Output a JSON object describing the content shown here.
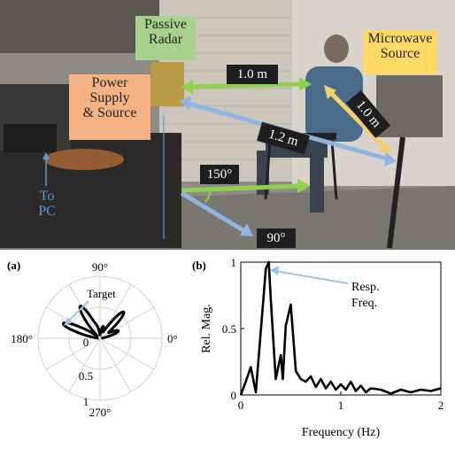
{
  "photo": {
    "labels": {
      "passive_radar": "Passive\nRadar",
      "microwave_source": "Microwave\nSource",
      "power_supply": "Power\nSupply\n& Source",
      "to_pc": "To\nPC",
      "dist_radar_person": "1.0 m",
      "dist_source_person": "1.0 m",
      "dist_radar_source": "1.2 m",
      "angle_150": "150°",
      "angle_90": "90°"
    },
    "colors": {
      "green": "#8fd14f",
      "yellow": "#f2d06b",
      "blue": "#8fb4e3",
      "peach": "#f4b183",
      "green_box": "#a9d18e",
      "yellow_box": "#ffd966",
      "blue_box": "#9dc3e6"
    }
  },
  "chart_data": [
    {
      "type": "polar",
      "panel_label": "(a)",
      "angle_ticks": [
        "90°",
        "180°",
        "0°",
        "270°"
      ],
      "radial_ticks": [
        "0",
        "0.5",
        "1"
      ],
      "annotation": "Target",
      "lobes": [
        {
          "angle_deg": 158,
          "r": 0.62
        },
        {
          "angle_deg": 122,
          "r": 0.58
        },
        {
          "angle_deg": 105,
          "r": 0.18
        },
        {
          "angle_deg": 75,
          "r": 0.18
        },
        {
          "angle_deg": 48,
          "r": 0.55
        },
        {
          "angle_deg": 22,
          "r": 0.3
        }
      ]
    },
    {
      "type": "line",
      "panel_label": "(b)",
      "xlabel": "Frequency (Hz)",
      "ylabel": "Rel. Mag.",
      "xlim": [
        0,
        2
      ],
      "ylim": [
        0,
        1
      ],
      "xticks": [
        "0",
        "1",
        "2"
      ],
      "yticks": [
        "0",
        "0.5",
        "1"
      ],
      "annotation": "Resp.\nFreq.",
      "x": [
        0,
        0.05,
        0.1,
        0.15,
        0.2,
        0.25,
        0.28,
        0.3,
        0.35,
        0.4,
        0.42,
        0.45,
        0.5,
        0.55,
        0.6,
        0.65,
        0.7,
        0.75,
        0.8,
        0.85,
        0.9,
        0.95,
        1.0,
        1.05,
        1.1,
        1.15,
        1.2,
        1.25,
        1.3,
        1.4,
        1.5,
        1.6,
        1.7,
        1.8,
        1.9,
        2.0
      ],
      "y": [
        0.0,
        0.1,
        0.21,
        0.02,
        0.48,
        0.95,
        1.0,
        0.72,
        0.12,
        0.3,
        0.12,
        0.52,
        0.68,
        0.18,
        0.12,
        0.1,
        0.14,
        0.06,
        0.12,
        0.05,
        0.1,
        0.04,
        0.08,
        0.04,
        0.1,
        0.03,
        0.07,
        0.02,
        0.05,
        0.04,
        0.01,
        0.04,
        0.02,
        0.04,
        0.03,
        0.05
      ]
    }
  ]
}
